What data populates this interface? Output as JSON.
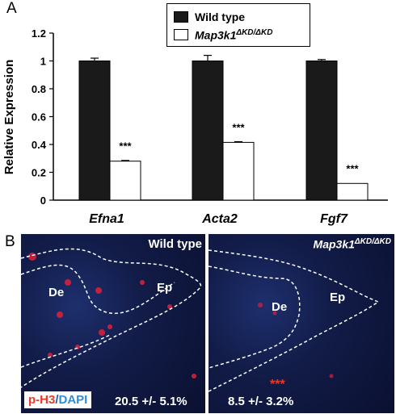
{
  "panels": {
    "a": "A",
    "b": "B"
  },
  "legend": {
    "wild_type": "Wild type",
    "mutant": "Map3k1",
    "mutant_sup": "ΔKD/ΔKD",
    "wild_type_color": "#1a1a1a",
    "mutant_color": "#ffffff"
  },
  "chart_data": {
    "type": "bar",
    "ylabel": "Relative Expression",
    "ylim": [
      0,
      1.2
    ],
    "yticks": [
      "0",
      "0.2",
      "0.4",
      "0.6",
      "0.8",
      "1",
      "1.2"
    ],
    "categories": [
      "Efna1",
      "Acta2",
      "Fgf7"
    ],
    "series": [
      {
        "name": "Wild type",
        "values": [
          1.0,
          1.0,
          1.0
        ],
        "errors": [
          0.02,
          0.04,
          0.01
        ]
      },
      {
        "name": "Map3k1 ΔKD/ΔKD",
        "values": [
          0.28,
          0.415,
          0.12
        ],
        "errors": [
          0.005,
          0.005,
          0.0
        ]
      }
    ],
    "significance": [
      "***",
      "***",
      "***"
    ]
  },
  "micrographs": {
    "left": {
      "title": "Wild type",
      "dermis": "De",
      "epidermis": "Ep",
      "stat": "20.5 +/- 5.1%"
    },
    "right": {
      "title_a": "Map3k1",
      "title_sup": "ΔKD/ΔKD",
      "dermis": "De",
      "epidermis": "Ep",
      "stat": "8.5 +/- 3.2%",
      "significance": "***"
    },
    "stain": {
      "a": "p-H3",
      "sep": "/",
      "b": "DAPI"
    }
  }
}
